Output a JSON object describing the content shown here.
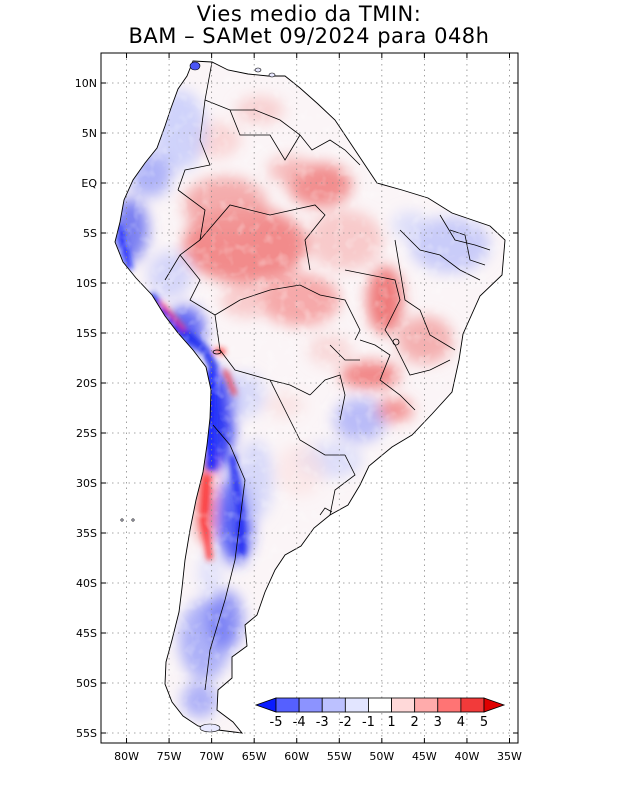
{
  "title": {
    "line1": "Vies medio da TMIN:",
    "line2": "BAM – SAMet 09/2024  para 048h"
  },
  "map": {
    "region": "South America",
    "variable": "TMIN bias",
    "lat_ticks": [
      "10N",
      "5N",
      "EQ",
      "5S",
      "10S",
      "15S",
      "20S",
      "25S",
      "30S",
      "35S",
      "40S",
      "45S",
      "50S",
      "55S"
    ],
    "lon_ticks": [
      "80W",
      "75W",
      "70W",
      "65W",
      "60W",
      "55W",
      "50W",
      "45W",
      "40W",
      "35W"
    ],
    "lat_range": [
      -56,
      13
    ],
    "lon_range": [
      -83,
      -34
    ],
    "gridlines": "dotted"
  },
  "legend": {
    "labels": [
      "-5",
      "-4",
      "-3",
      "-2",
      "-1",
      "1",
      "2",
      "3",
      "4",
      "5"
    ],
    "colors": [
      "#0a1cff",
      "#5560ff",
      "#8c93ff",
      "#bcc1ff",
      "#e2e5ff",
      "#ffffff",
      "#ffd9d9",
      "#ffabab",
      "#ff7474",
      "#f23a3a",
      "#e00000"
    ]
  }
}
